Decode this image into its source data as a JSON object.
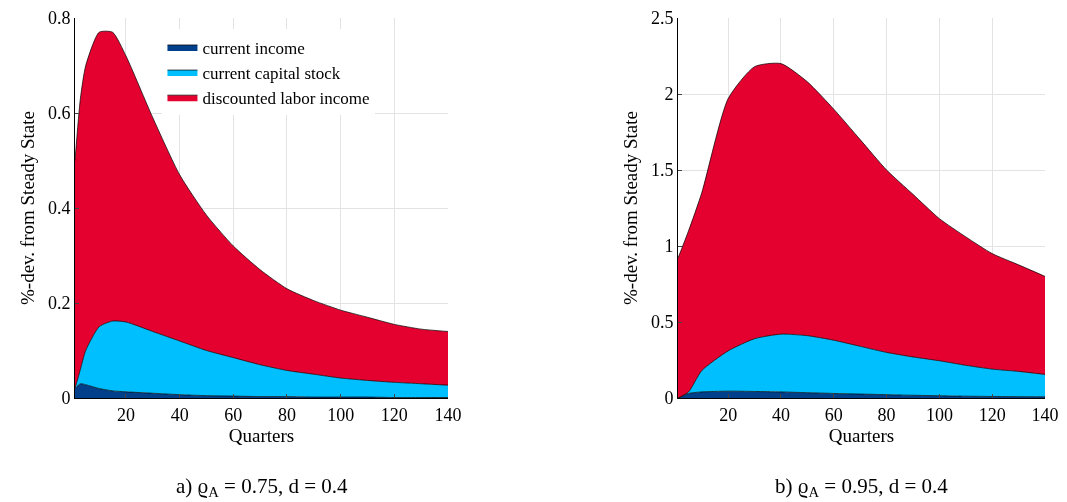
{
  "chart_data": [
    {
      "type": "area",
      "stacked": true,
      "xlabel": "Quarters",
      "ylabel": "%-dev. from Steady State",
      "annotations": [
        "a) ϱ$_{A}$ = 0.75, d = 0.4"
      ],
      "x": [
        1,
        3,
        5,
        10,
        15,
        20,
        30,
        40,
        50,
        60,
        70,
        80,
        90,
        100,
        110,
        120,
        130,
        140
      ],
      "xlim": [
        1,
        140
      ],
      "xticks": [
        20,
        40,
        60,
        80,
        100,
        120,
        140
      ],
      "ylim": [
        0,
        0.8
      ],
      "yticks": [
        0,
        0.2,
        0.4,
        0.6,
        0.8
      ],
      "grid": true,
      "legend": "top",
      "series": [
        {
          "name": "current income",
          "color": "#003f8a",
          "values": [
            0.02,
            0.03,
            0.028,
            0.02,
            0.015,
            0.013,
            0.01,
            0.007,
            0.005,
            0.004,
            0.003,
            0.003,
            0.002,
            0.002,
            0.002,
            0.001,
            0.001,
            0.001
          ]
        },
        {
          "name": "current capital stock",
          "color": "#00bfff",
          "values": [
            0,
            0.03,
            0.072,
            0.13,
            0.147,
            0.147,
            0.13,
            0.113,
            0.095,
            0.081,
            0.067,
            0.055,
            0.048,
            0.04,
            0.035,
            0.032,
            0.029,
            0.026
          ]
        },
        {
          "name": "discounted labor income",
          "color": "#e4002f",
          "values": [
            0.48,
            0.57,
            0.6,
            0.62,
            0.608,
            0.56,
            0.45,
            0.35,
            0.285,
            0.235,
            0.2,
            0.172,
            0.155,
            0.143,
            0.133,
            0.122,
            0.115,
            0.113
          ]
        }
      ]
    },
    {
      "type": "area",
      "stacked": true,
      "xlabel": "Quarters",
      "ylabel": "%-dev. from Steady State",
      "annotations": [
        "b) ϱ$_{A}$ = 0.95, d = 0.4"
      ],
      "x": [
        1,
        5,
        10,
        20,
        30,
        40,
        50,
        60,
        70,
        80,
        90,
        100,
        110,
        120,
        130,
        140
      ],
      "xlim": [
        1,
        140
      ],
      "xticks": [
        20,
        40,
        60,
        80,
        100,
        120,
        140
      ],
      "ylim": [
        0,
        2.5
      ],
      "yticks": [
        0,
        0.5,
        1,
        1.5,
        2,
        2.5
      ],
      "grid": true,
      "legend": false,
      "series": [
        {
          "color": "#003f8a",
          "values": [
            0,
            0.03,
            0.04,
            0.045,
            0.043,
            0.04,
            0.035,
            0.03,
            0.026,
            0.022,
            0.018,
            0.015,
            0.012,
            0.01,
            0.009,
            0.008
          ]
        },
        {
          "color": "#00bfff",
          "values": [
            0,
            0.01,
            0.14,
            0.265,
            0.347,
            0.38,
            0.375,
            0.35,
            0.314,
            0.278,
            0.252,
            0.23,
            0.203,
            0.18,
            0.166,
            0.147
          ]
        },
        {
          "color": "#e4002f",
          "values": [
            0.92,
            1.06,
            1.17,
            1.66,
            1.79,
            1.78,
            1.67,
            1.52,
            1.36,
            1.2,
            1.07,
            0.935,
            0.845,
            0.76,
            0.701,
            0.645
          ]
        }
      ]
    }
  ]
}
